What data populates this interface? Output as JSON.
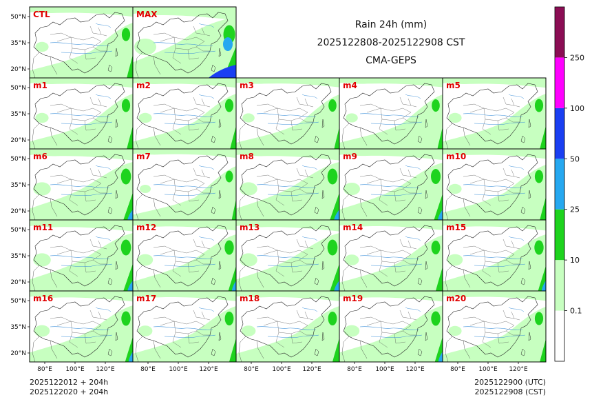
{
  "header": {
    "title_line1": "Rain 24h (mm)",
    "title_line2": "2025122808-2025122908 CST",
    "title_line3": "CMA-GEPS"
  },
  "footer": {
    "left_line1": "2025122012 + 204h",
    "left_line2": "2025122020 + 204h",
    "right_line1": "2025122900 (UTC)",
    "right_line2": "2025122908 (CST)"
  },
  "axes": {
    "lat_labels": [
      "50°N",
      "35°N",
      "20°N"
    ],
    "lon_labels": [
      "80°E",
      "100°E",
      "120°E"
    ]
  },
  "panels": [
    {
      "label": "CTL",
      "rain": 0.35
    },
    {
      "label": "MAX",
      "rain": 0.75
    },
    {
      "label": "m1",
      "rain": 0.35
    },
    {
      "label": "m2",
      "rain": 0.35
    },
    {
      "label": "m3",
      "rain": 0.3
    },
    {
      "label": "m4",
      "rain": 0.3
    },
    {
      "label": "m5",
      "rain": 0.35
    },
    {
      "label": "m6",
      "rain": 0.55
    },
    {
      "label": "m7",
      "rain": 0.25
    },
    {
      "label": "m8",
      "rain": 0.55
    },
    {
      "label": "m9",
      "rain": 0.5
    },
    {
      "label": "m10",
      "rain": 0.35
    },
    {
      "label": "m11",
      "rain": 0.55
    },
    {
      "label": "m12",
      "rain": 0.45
    },
    {
      "label": "m13",
      "rain": 0.55
    },
    {
      "label": "m14",
      "rain": 0.4
    },
    {
      "label": "m15",
      "rain": 0.45
    },
    {
      "label": "m16",
      "rain": 0.45
    },
    {
      "label": "m17",
      "rain": 0.4
    },
    {
      "label": "m18",
      "rain": 0.4
    },
    {
      "label": "m19",
      "rain": 0.45
    },
    {
      "label": "m20",
      "rain": 0.35
    }
  ],
  "colorbar": {
    "colors": [
      "#ffffff",
      "#c7ffc0",
      "#1ed31e",
      "#26a8f0",
      "#1a3ff2",
      "#ff00ff",
      "#8b0d54"
    ],
    "labels": [
      "0.1",
      "10",
      "25",
      "50",
      "100",
      "250"
    ]
  },
  "map_colors": {
    "land_border": "#222222",
    "river": "#3b8fd9",
    "light_rain": "#c7ffc0",
    "moderate_rain": "#1ed31e",
    "heavy_rain": "#26a8f0",
    "very_heavy_rain": "#1a3ff2"
  }
}
